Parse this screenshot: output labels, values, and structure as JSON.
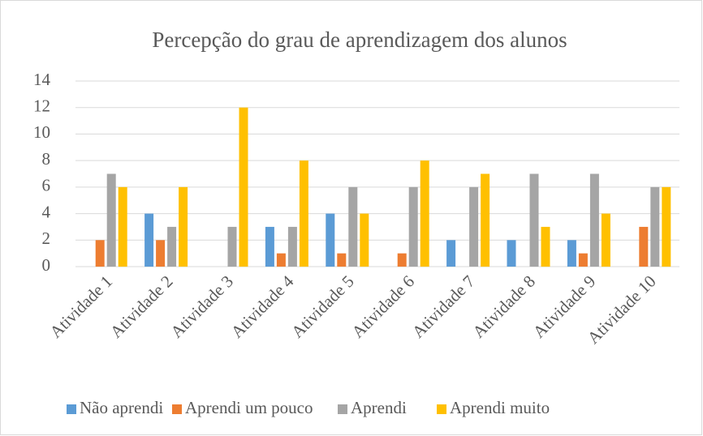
{
  "chart_data": {
    "type": "bar",
    "title": "Percepção do grau de aprendizagem dos alunos",
    "categories": [
      "Atividade 1",
      "Atividade 2",
      "Atividade 3",
      "Atividade 4",
      "Atividade 5",
      "Atividade 6",
      "Atividade 7",
      "Atividade 8",
      "Atividade 9",
      "Atividade 10"
    ],
    "series": [
      {
        "name": "Não aprendi",
        "color": "#5b9bd5",
        "values": [
          0,
          4,
          0,
          3,
          4,
          0,
          2,
          2,
          2,
          0
        ]
      },
      {
        "name": "Aprendi um pouco",
        "color": "#ed7d31",
        "values": [
          2,
          2,
          0,
          1,
          1,
          1,
          0,
          0,
          1,
          3
        ]
      },
      {
        "name": "Aprendi",
        "color": "#a5a5a5",
        "values": [
          7,
          3,
          3,
          3,
          6,
          6,
          6,
          7,
          7,
          6
        ]
      },
      {
        "name": "Aprendi muito",
        "color": "#ffc000",
        "values": [
          6,
          6,
          12,
          8,
          4,
          8,
          7,
          3,
          4,
          6
        ]
      }
    ],
    "ylim": [
      0,
      14
    ],
    "yticks": [
      0,
      2,
      4,
      6,
      8,
      10,
      12,
      14
    ],
    "grid": true,
    "legend": "bottom"
  }
}
